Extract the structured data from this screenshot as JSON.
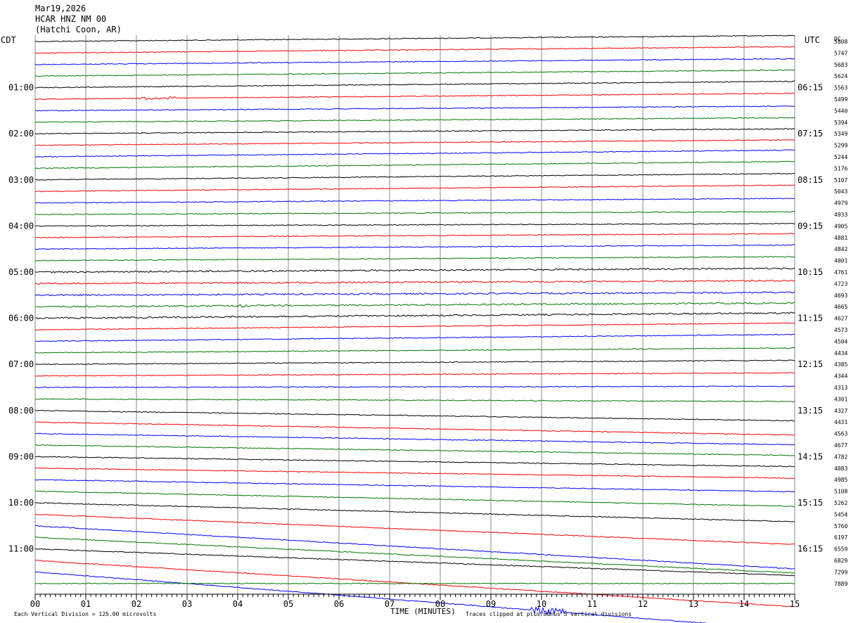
{
  "header": {
    "date": "Mar19,2026",
    "station": "HCAR HNZ NM 00",
    "location": "(Hatchi Coon, AR)"
  },
  "labels": {
    "left_zone": "CDT",
    "right_zone": "UTC",
    "dc_label": "DC",
    "xlabel": "TIME (MINUTES)",
    "scale_note": "Each Vertical Division =  125.00 microvolts",
    "clip_note": "Traces clipped at plus/minus 5 vertical divisions"
  },
  "chart_data": {
    "type": "line",
    "title": "HCAR HNZ NM 00",
    "xlabel": "TIME (MINUTES)",
    "xlim": [
      0,
      15
    ],
    "x_ticks": [
      "00",
      "01",
      "02",
      "03",
      "04",
      "05",
      "06",
      "07",
      "08",
      "09",
      "10",
      "11",
      "12",
      "13",
      "14",
      "15"
    ],
    "trace_colors": [
      "#000000",
      "#ff0000",
      "#0000ff",
      "#007700"
    ],
    "rows": 48,
    "left_time_labels": [
      "01:00",
      "02:00",
      "03:00",
      "04:00",
      "05:00",
      "06:00",
      "07:00",
      "08:00",
      "09:00",
      "10:00",
      "11:00"
    ],
    "right_time_labels": [
      "06:15",
      "07:15",
      "08:15",
      "09:15",
      "10:15",
      "11:15",
      "12:15",
      "13:15",
      "14:15",
      "15:15",
      "16:15"
    ],
    "dc_offsets": [
      5808,
      5747,
      5683,
      5624,
      5563,
      5499,
      5440,
      5394,
      5349,
      5299,
      5244,
      5176,
      5107,
      5043,
      4979,
      4933,
      4905,
      4881,
      4842,
      4801,
      4761,
      4723,
      4693,
      4665,
      4627,
      4573,
      4504,
      4434,
      4385,
      4344,
      4313,
      4301,
      4327,
      4431,
      4563,
      4677,
      4782,
      4883,
      4985,
      5108,
      5262,
      5454,
      5760,
      6197,
      6559,
      6829,
      7299,
      7889
    ]
  },
  "colors": {
    "grid": "#888888",
    "black_trace": "#000000",
    "red_trace": "#ff0000",
    "blue_trace": "#0000ff",
    "green_trace": "#007700"
  }
}
